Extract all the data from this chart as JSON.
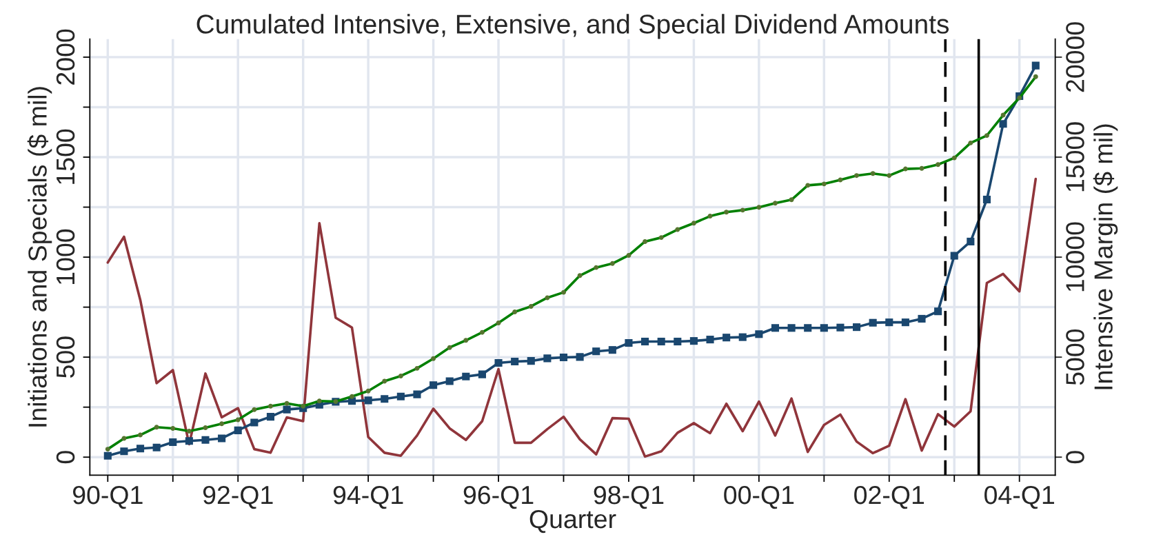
{
  "chart_data": {
    "type": "line",
    "title": "Cumulated Intensive, Extensive, and Special Dividend Amounts",
    "xlabel": "Quarter",
    "ylabel": "Initiations and Specials ($ mil)",
    "y2label": "Intensive Margin ($ mil)",
    "categories": [
      "90-Q1",
      null,
      null,
      null,
      null,
      null,
      null,
      null,
      "92-Q1",
      null,
      null,
      null,
      null,
      null,
      null,
      null,
      "94-Q1",
      null,
      null,
      null,
      null,
      null,
      null,
      null,
      "96-Q1",
      null,
      null,
      null,
      null,
      null,
      null,
      null,
      "98-Q1",
      null,
      null,
      null,
      null,
      null,
      null,
      null,
      "00-Q1",
      null,
      null,
      null,
      null,
      null,
      null,
      null,
      "02-Q1",
      null,
      null,
      null,
      null,
      null,
      null,
      null,
      "04-Q1",
      null
    ],
    "series": [
      {
        "color": "#90353b",
        "marker": "none",
        "values": [
          973,
          1102,
          785,
          370,
          435,
          65,
          418,
          199,
          245,
          40,
          22,
          199,
          180,
          1170,
          697,
          648,
          101,
          22,
          7,
          108,
          242,
          144,
          86,
          180,
          440,
          72,
          72,
          140,
          202,
          89,
          14,
          195,
          192,
          3,
          29,
          122,
          170,
          120,
          267,
          130,
          278,
          108,
          293,
          26,
          161,
          213,
          78,
          20,
          57,
          290,
          33,
          215,
          153,
          229,
          871,
          916,
          829,
          1391
        ]
      },
      {
        "color": "#1a476f",
        "marker": "square",
        "values": [
          7,
          29,
          43,
          48,
          75,
          81,
          86,
          94,
          134,
          173,
          202,
          238,
          245,
          262,
          277,
          281,
          284,
          291,
          303,
          314,
          360,
          380,
          403,
          414,
          471,
          478,
          481,
          494,
          499,
          501,
          529,
          536,
          571,
          578,
          578,
          578,
          581,
          588,
          598,
          600,
          615,
          646,
          646,
          646,
          646,
          648,
          650,
          672,
          674,
          674,
          692,
          729,
          1007,
          1078,
          1288,
          1666,
          1805,
          1958
        ]
      },
      {
        "color": "#008000",
        "marker": "circle",
        "axis": "y2",
        "values": [
          400,
          940,
          1110,
          1500,
          1440,
          1300,
          1470,
          1670,
          1870,
          2380,
          2550,
          2690,
          2550,
          2810,
          2780,
          3030,
          3310,
          3800,
          4060,
          4440,
          4930,
          5480,
          5840,
          6240,
          6710,
          7260,
          7540,
          7970,
          8240,
          9080,
          9480,
          9680,
          10090,
          10780,
          10980,
          11380,
          11700,
          12050,
          12250,
          12350,
          12490,
          12700,
          12870,
          13590,
          13660,
          13860,
          14080,
          14180,
          14080,
          14410,
          14440,
          14630,
          14960,
          15710,
          16080,
          17100,
          17960,
          19020
        ]
      }
    ],
    "ylim": [
      -90,
      2090
    ],
    "yticks": [
      0,
      {
        "value": 250,
        "label": null
      },
      500,
      {
        "value": 750,
        "label": null
      },
      1000,
      {
        "value": 1250,
        "label": null
      },
      1500,
      {
        "value": 1750,
        "label": null
      },
      2000
    ],
    "y2lim": [
      -900,
      20900
    ],
    "y2ticks": [
      0,
      5000,
      10000,
      15000,
      20000
    ],
    "grid": true,
    "legend": false
  }
}
